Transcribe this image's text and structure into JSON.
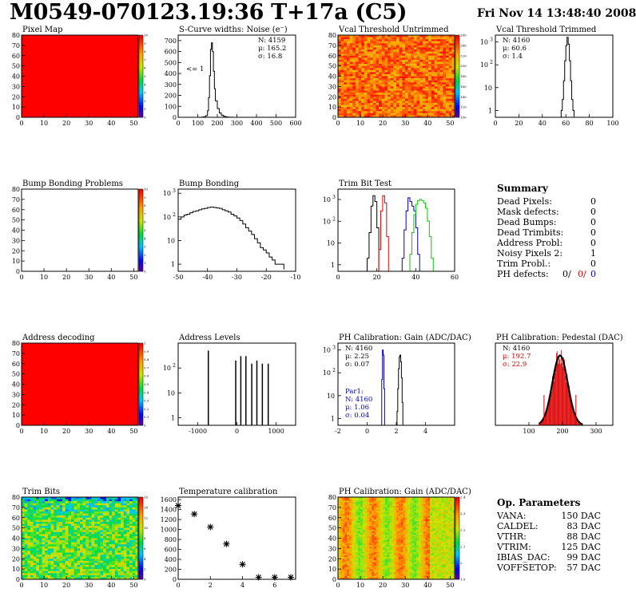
{
  "header": {
    "title": "M0549-070123.19:36 T+17a (C5)",
    "date": "Fri Nov 14 13:48:40 2008"
  },
  "chart_data": [
    {
      "id": "pixel-map",
      "type": "heatmap",
      "title": "Pixel Map",
      "pattern": "uniform_max",
      "xlim": [
        0,
        52
      ],
      "ylim": [
        0,
        80
      ],
      "xticks": [
        0,
        10,
        20,
        30,
        40,
        50
      ],
      "yticks": [
        0,
        10,
        20,
        30,
        40,
        50,
        60,
        70,
        80
      ],
      "zticks": [
        "0",
        "1",
        "2",
        "3",
        "4",
        "5",
        "6",
        "7",
        "8",
        "9",
        "10"
      ]
    },
    {
      "id": "scurve-widths",
      "type": "histogram",
      "title": "S-Curve widths: Noise (e⁻)",
      "xlim": [
        0,
        600
      ],
      "ylim": [
        0,
        750
      ],
      "xticks": [
        0,
        100,
        200,
        300,
        400,
        500,
        600
      ],
      "yticks": [
        0,
        100,
        200,
        300,
        400,
        500,
        600,
        700
      ],
      "stats": [
        "N: 4159",
        "μ: 165.2",
        "σ: 16.8"
      ],
      "annotation": "<= 1",
      "series": [
        {
          "color": "#000",
          "x": [
            100,
            110,
            120,
            130,
            140,
            150,
            155,
            160,
            165,
            170,
            175,
            180,
            185,
            190,
            200,
            210,
            220,
            230,
            240,
            250,
            260,
            270,
            280
          ],
          "y": [
            0,
            0,
            2,
            5,
            15,
            60,
            180,
            380,
            620,
            680,
            600,
            420,
            260,
            150,
            80,
            40,
            20,
            10,
            5,
            2,
            1,
            1,
            0
          ]
        }
      ]
    },
    {
      "id": "vcal-untrimmed",
      "type": "heatmap",
      "title": "Vcal Threshold Untrimmed",
      "pattern": "noise_warm",
      "xlim": [
        0,
        52
      ],
      "ylim": [
        0,
        80
      ],
      "xticks": [
        0,
        10,
        20,
        30,
        40,
        50
      ],
      "yticks": [
        0,
        10,
        20,
        30,
        40,
        50,
        60,
        70,
        80
      ],
      "zticks": [
        "100",
        "120",
        "140",
        "160",
        "180",
        "200",
        "220",
        "240",
        "260"
      ]
    },
    {
      "id": "vcal-trimmed",
      "type": "histogram",
      "title": "Vcal Threshold Trimmed",
      "yscale": "log",
      "xlim": [
        0,
        100
      ],
      "ylim": [
        0.5,
        2000
      ],
      "xticks": [
        0,
        20,
        40,
        60,
        80,
        100
      ],
      "ytick_exp": [
        0,
        1,
        2,
        3
      ],
      "stats": [
        "N: 4160",
        "μ: 60.6",
        "σ:  1.4"
      ],
      "series": [
        {
          "color": "#000",
          "x": [
            55,
            56,
            57,
            58,
            59,
            60,
            61,
            62,
            63,
            64,
            65,
            66,
            67
          ],
          "y": [
            0,
            1,
            3,
            20,
            150,
            700,
            1600,
            800,
            150,
            20,
            3,
            1,
            0
          ]
        }
      ]
    },
    {
      "id": "bump-problems",
      "type": "heatmap",
      "title": "Bump Bonding Problems",
      "pattern": "empty",
      "xlim": [
        0,
        52
      ],
      "ylim": [
        0,
        80
      ],
      "xticks": [
        0,
        10,
        20,
        30,
        40,
        50
      ],
      "yticks": [
        0,
        10,
        20,
        30,
        40,
        50,
        60,
        70,
        80
      ],
      "zticks": [
        "0",
        "1",
        "2",
        "3",
        "4",
        "5",
        "6",
        "7",
        "8",
        "9",
        "10"
      ]
    },
    {
      "id": "bump-bonding",
      "type": "histogram",
      "title": "Bump Bonding",
      "yscale": "log",
      "xlim": [
        -50,
        -10
      ],
      "ylim": [
        0.5,
        1500
      ],
      "xticks": [
        -50,
        -40,
        -30,
        -20,
        -10
      ],
      "ytick_exp": [
        0,
        1,
        2,
        3
      ],
      "series": [
        {
          "color": "#000",
          "x": [
            -50,
            -49,
            -48,
            -47,
            -46,
            -45,
            -44,
            -43,
            -42,
            -41,
            -40,
            -39,
            -38,
            -37,
            -36,
            -35,
            -34,
            -33,
            -32,
            -31,
            -30,
            -29,
            -28,
            -27,
            -26,
            -25,
            -24,
            -23,
            -22,
            -21,
            -20,
            -19,
            -18,
            -17,
            -16,
            -15,
            -14
          ],
          "y": [
            80,
            100,
            120,
            130,
            150,
            170,
            180,
            200,
            220,
            230,
            250,
            260,
            250,
            240,
            230,
            200,
            180,
            160,
            130,
            110,
            90,
            70,
            50,
            35,
            25,
            18,
            12,
            8,
            5,
            4,
            3,
            2,
            1.5,
            1,
            1,
            1,
            0.6
          ]
        }
      ]
    },
    {
      "id": "trim-bit-test",
      "type": "histogram",
      "title": "Trim Bit Test",
      "yscale": "log",
      "xlim": [
        0,
        60
      ],
      "ylim": [
        0.5,
        3000
      ],
      "xticks": [
        0,
        20,
        40,
        60
      ],
      "ytick_exp": [
        0,
        1,
        2,
        3
      ],
      "series": [
        {
          "color": "#000",
          "x": [
            14,
            15,
            16,
            17,
            18,
            19,
            20,
            21
          ],
          "y": [
            0,
            2,
            30,
            500,
            1500,
            800,
            50,
            0
          ]
        },
        {
          "color": "#d00",
          "x": [
            20,
            21,
            22,
            23,
            24,
            25,
            26
          ],
          "y": [
            0,
            5,
            300,
            1500,
            700,
            20,
            0
          ]
        },
        {
          "color": "#00c",
          "x": [
            32,
            33,
            34,
            35,
            36,
            37,
            38,
            39,
            40,
            41,
            42
          ],
          "y": [
            0,
            2,
            40,
            300,
            1200,
            800,
            500,
            300,
            50,
            3,
            0
          ]
        },
        {
          "color": "#0c0",
          "x": [
            36,
            37,
            38,
            39,
            40,
            41,
            42,
            43,
            44,
            45,
            46,
            47,
            48,
            49
          ],
          "y": [
            0,
            3,
            30,
            200,
            600,
            900,
            1000,
            900,
            700,
            400,
            100,
            20,
            2,
            0
          ]
        }
      ]
    },
    {
      "id": "address-decoding",
      "type": "heatmap",
      "title": "Address decoding",
      "pattern": "uniform_max",
      "xlim": [
        0,
        52
      ],
      "ylim": [
        0,
        80
      ],
      "xticks": [
        0,
        10,
        20,
        30,
        40,
        50
      ],
      "yticks": [
        0,
        10,
        20,
        30,
        40,
        50,
        60,
        70,
        80
      ],
      "zticks": [
        "0",
        "0.1",
        "0.2",
        "0.3",
        "0.4",
        "0.5",
        "0.6",
        "0.7",
        "0.8",
        "0.9",
        "1"
      ]
    },
    {
      "id": "address-levels",
      "type": "histogram",
      "title": "Address Levels",
      "yscale": "log",
      "xlim": [
        -1500,
        1500
      ],
      "ylim": [
        0.5,
        1000
      ],
      "xticks": [
        -1000,
        0,
        1000
      ],
      "ytick_exp": [
        0,
        1,
        2
      ],
      "series": [
        {
          "color": "#000",
          "mode": "spikes",
          "x": [
            -730,
            -30,
            100,
            230,
            380,
            510,
            650,
            800
          ],
          "y": [
            500,
            200,
            300,
            300,
            150,
            200,
            150,
            150
          ]
        }
      ]
    },
    {
      "id": "ph-gain",
      "type": "histogram",
      "title": "PH Calibration: Gain (ADC/DAC)",
      "yscale": "log",
      "xlim": [
        -2,
        6
      ],
      "ylim": [
        0.5,
        2000
      ],
      "xticks": [
        -2,
        0,
        2,
        4
      ],
      "ytick_exp": [
        0,
        1,
        2,
        3
      ],
      "stats": [
        "N: 4160",
        "μ: 2.25",
        "σ: 0.07"
      ],
      "stats2": [
        "Par1:",
        "N: 4160",
        "μ: 1.06",
        "σ: 0.04"
      ],
      "series": [
        {
          "color": "#000",
          "x": [
            2.0,
            2.05,
            2.1,
            2.15,
            2.2,
            2.25,
            2.3,
            2.35,
            2.4,
            2.45
          ],
          "y": [
            0,
            2,
            20,
            150,
            500,
            600,
            300,
            60,
            5,
            0
          ]
        },
        {
          "color": "#00c",
          "x": [
            0.95,
            1.0,
            1.05,
            1.1,
            1.15,
            1.2
          ],
          "y": [
            0,
            50,
            1000,
            600,
            20,
            0
          ]
        }
      ]
    },
    {
      "id": "ph-pedestal",
      "type": "histogram",
      "title": "PH Calibration: Pedestal (DAC)",
      "xlim": [
        0,
        350
      ],
      "ylim": [
        0,
        200
      ],
      "xticks": [
        100,
        200,
        300
      ],
      "stats": [
        "N: 4160",
        "μ: 192.7",
        "σ: 22.9"
      ]
    },
    {
      "id": "trim-bits",
      "type": "heatmap",
      "title": "Trim Bits",
      "pattern": "trim",
      "xlim": [
        0,
        52
      ],
      "ylim": [
        0,
        80
      ],
      "xticks": [
        0,
        10,
        20,
        30,
        40,
        50
      ],
      "yticks": [
        0,
        10,
        20,
        30,
        40,
        50,
        60,
        70,
        80
      ],
      "zticks": [
        "0",
        "2",
        "4",
        "6",
        "8",
        "10",
        "12",
        "14",
        "16"
      ]
    },
    {
      "id": "temperature",
      "type": "scatter",
      "title": "Temperature calibration",
      "xlim": [
        0,
        7.3
      ],
      "ylim": [
        0,
        1650
      ],
      "xticks": [
        0,
        2,
        4,
        6
      ],
      "yticks": [
        0,
        200,
        400,
        600,
        800,
        1000,
        1200,
        1400,
        1600
      ],
      "series": [
        {
          "color": "#000",
          "x": [
            0,
            1,
            2,
            3,
            4,
            5,
            6,
            7
          ],
          "y": [
            1480,
            1310,
            1050,
            710,
            300,
            40,
            40,
            40
          ]
        }
      ]
    },
    {
      "id": "ph-gain-map",
      "type": "heatmap",
      "title": "PH Calibration: Gain (ADC/DAC)",
      "pattern": "gain",
      "xlim": [
        0,
        52
      ],
      "ylim": [
        0,
        80
      ],
      "xticks": [
        0,
        10,
        20,
        30,
        40,
        50
      ],
      "yticks": [
        0,
        10,
        20,
        30,
        40,
        50,
        60,
        70,
        80
      ],
      "zticks": [
        "1.9",
        "2",
        "2.1",
        "2.2",
        "2.3",
        "2.4"
      ]
    }
  ],
  "summary": {
    "title": "Summary",
    "rows": [
      {
        "label": "Dead Pixels:",
        "value": "0"
      },
      {
        "label": "Mask defects:",
        "value": "0"
      },
      {
        "label": "Dead Bumps:",
        "value": "0"
      },
      {
        "label": "Dead Trimbits:",
        "value": "0"
      },
      {
        "label": "Address Probl:",
        "value": "0"
      },
      {
        "label": "Noisy Pixels 2:",
        "value": "1"
      },
      {
        "label": "Trim Probl.:",
        "value": "0"
      }
    ],
    "ph_defects": {
      "label": "PH defects:",
      "values": [
        "0/",
        "0/",
        "0"
      ],
      "colors": [
        "#000",
        "#d00",
        "#00c"
      ]
    }
  },
  "op_params": {
    "title": "Op. Parameters",
    "rows": [
      {
        "label": "VANA:",
        "value": "150 DAC"
      },
      {
        "label": "CALDEL:",
        "value": "83 DAC"
      },
      {
        "label": "VTHR:",
        "value": "88 DAC"
      },
      {
        "label": "VTRIM:",
        "value": "125 DAC"
      },
      {
        "label": "IBIAS_DAC:",
        "value": "99 DAC"
      },
      {
        "label": "VOFFSETOP:",
        "value": "57 DAC"
      }
    ]
  }
}
